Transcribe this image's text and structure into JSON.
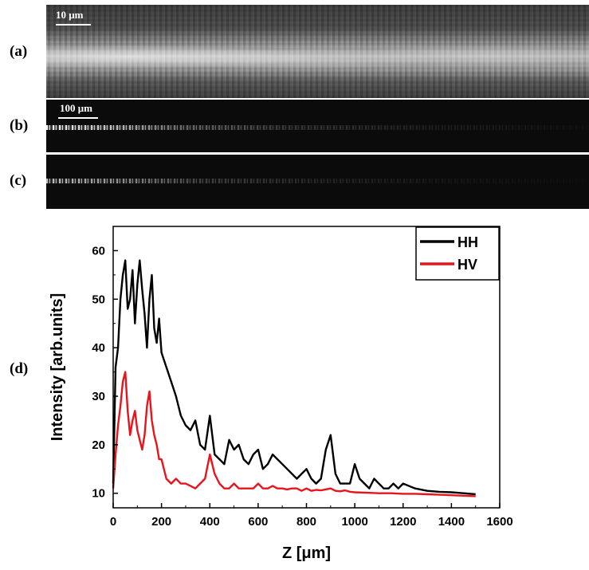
{
  "panels": {
    "a": {
      "label": "(a)",
      "scalebar": "10 μm"
    },
    "b": {
      "label": "(b)",
      "scalebar": "100 μm"
    },
    "c": {
      "label": "(c)"
    },
    "d": {
      "label": "(d)"
    }
  },
  "chart_data": {
    "type": "line",
    "xlabel": "Z [μm]",
    "ylabel": "Intensity [arb.units]",
    "xlim": [
      0,
      1600
    ],
    "ylim": [
      7,
      65
    ],
    "xticks": [
      0,
      200,
      400,
      600,
      800,
      1000,
      1200,
      1400,
      1600
    ],
    "yticks": [
      10,
      20,
      30,
      40,
      50,
      60
    ],
    "grid": false,
    "legend_position": "top-right",
    "colors": {
      "HH": "#000000",
      "HV": "#e8141b"
    },
    "series": [
      {
        "name": "HH",
        "x": [
          0,
          10,
          20,
          30,
          40,
          50,
          60,
          70,
          80,
          90,
          100,
          110,
          120,
          130,
          140,
          150,
          160,
          170,
          180,
          190,
          200,
          220,
          240,
          260,
          280,
          300,
          320,
          340,
          360,
          380,
          400,
          420,
          440,
          460,
          480,
          500,
          520,
          540,
          560,
          580,
          600,
          620,
          640,
          660,
          680,
          700,
          720,
          740,
          760,
          780,
          800,
          820,
          840,
          860,
          880,
          900,
          920,
          940,
          960,
          980,
          1000,
          1020,
          1040,
          1060,
          1080,
          1100,
          1120,
          1140,
          1160,
          1180,
          1200,
          1250,
          1300,
          1350,
          1400,
          1450,
          1500
        ],
        "y": [
          12,
          36,
          40,
          50,
          55,
          58,
          48,
          50,
          56,
          45,
          53,
          58,
          52,
          47,
          40,
          50,
          55,
          44,
          41,
          46,
          39,
          36,
          33,
          30,
          26,
          24,
          23,
          25,
          20,
          19,
          26,
          18,
          17,
          16,
          21,
          19,
          20,
          17,
          16,
          18,
          19,
          15,
          16,
          18,
          17,
          16,
          15,
          14,
          13,
          14,
          15,
          13,
          12,
          13,
          19,
          22,
          14,
          12,
          12,
          12,
          16,
          13,
          12,
          11,
          13,
          12,
          11,
          11,
          12,
          11,
          12,
          11,
          10.5,
          10.3,
          10.2,
          10,
          9.8
        ]
      },
      {
        "name": "HV",
        "x": [
          0,
          10,
          20,
          30,
          40,
          50,
          60,
          70,
          80,
          90,
          100,
          110,
          120,
          130,
          140,
          150,
          160,
          170,
          180,
          190,
          200,
          220,
          240,
          260,
          280,
          300,
          320,
          340,
          360,
          380,
          400,
          420,
          440,
          460,
          480,
          500,
          520,
          540,
          560,
          580,
          600,
          620,
          640,
          660,
          680,
          700,
          720,
          740,
          760,
          780,
          800,
          820,
          840,
          860,
          880,
          900,
          920,
          940,
          960,
          980,
          1000,
          1050,
          1100,
          1150,
          1200,
          1250,
          1300,
          1350,
          1400,
          1450,
          1500
        ],
        "y": [
          11,
          18,
          24,
          28,
          33,
          35,
          27,
          22,
          25,
          27,
          23,
          21,
          19,
          22,
          28,
          31,
          25,
          22,
          20,
          17,
          17,
          13,
          12,
          13,
          12,
          12,
          11.5,
          11,
          12,
          13,
          18,
          14,
          12,
          11,
          11,
          12,
          11,
          11,
          11,
          11,
          12,
          11,
          11,
          11.5,
          11,
          11,
          10.8,
          11,
          11,
          10.5,
          11,
          10.5,
          10.7,
          10.6,
          10.8,
          11,
          10.5,
          10.4,
          10.6,
          10.3,
          10.2,
          10.1,
          10,
          10,
          9.9,
          9.9,
          9.8,
          9.7,
          9.6,
          9.5,
          9.4
        ]
      }
    ]
  }
}
